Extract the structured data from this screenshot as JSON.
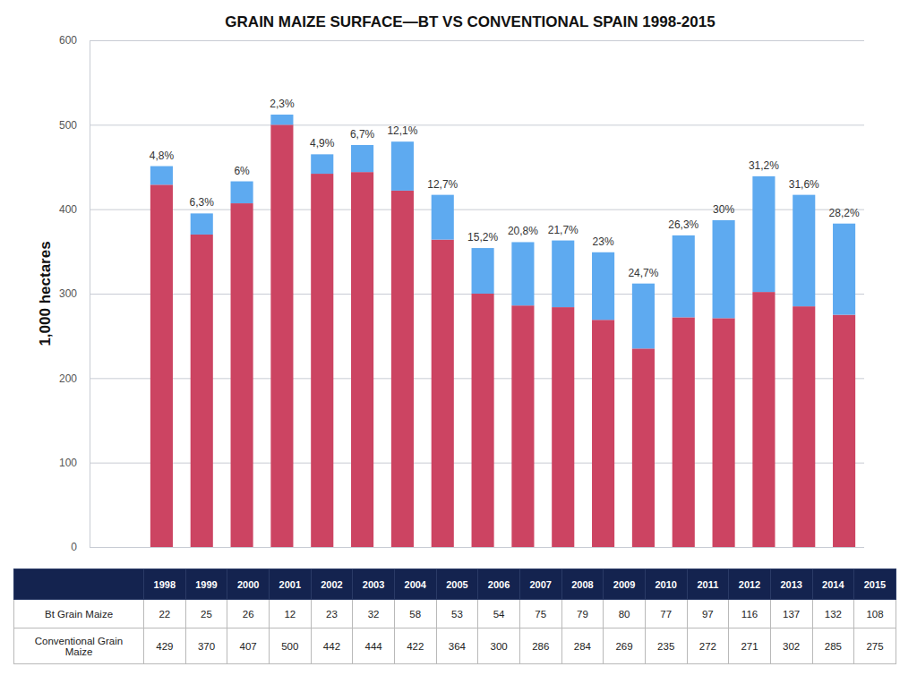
{
  "chart_data": {
    "type": "bar",
    "title": "GRAIN MAIZE SURFACE—BT VS CONVENTIONAL SPAIN 1998-2015",
    "y_label": "1,000 hectares",
    "categories": [
      "1998",
      "1999",
      "2000",
      "2001",
      "2002",
      "2003",
      "2004",
      "2005",
      "2006",
      "2007",
      "2008",
      "2009",
      "2010",
      "2011",
      "2012",
      "2013",
      "2014",
      "2015"
    ],
    "series": [
      {
        "name": "Bt Grain Maize",
        "color": "#5eaaf0",
        "values": [
          22,
          25,
          26,
          12,
          23,
          32,
          58,
          53,
          54,
          75,
          79,
          80,
          77,
          97,
          116,
          137,
          132,
          108
        ]
      },
      {
        "name": "Conventional Grain Maize",
        "color": "#cc4462",
        "values": [
          429,
          370,
          407,
          500,
          442,
          444,
          422,
          364,
          300,
          286,
          284,
          269,
          235,
          272,
          271,
          302,
          285,
          275
        ]
      }
    ],
    "annotations": [
      "4,8%",
      "6,3%",
      "6%",
      "2,3%",
      "4,9%",
      "6,7%",
      "12,1%",
      "12,7%",
      "15,2%",
      "20,8%",
      "21,7%",
      "23%",
      "24,7%",
      "26,3%",
      "30%",
      "31,2%",
      "31,6%",
      "28,2%"
    ],
    "stacked": true,
    "data_labels": false,
    "ylim": [
      0,
      600
    ],
    "yticks": [
      0,
      100,
      200,
      300,
      400,
      500,
      600
    ],
    "grid": true
  }
}
